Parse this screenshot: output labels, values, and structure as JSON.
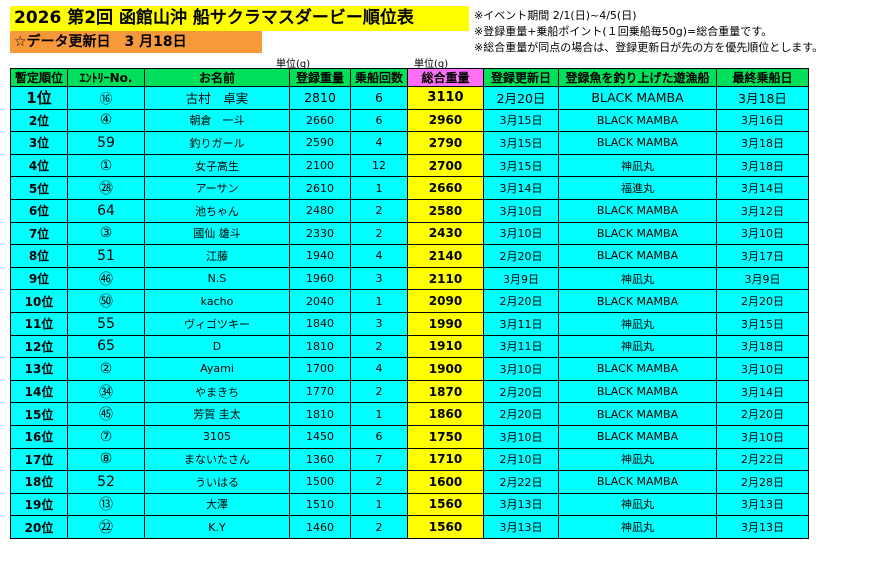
{
  "title": "2026 第2回 函館山沖 船サクラマスダービー順位表",
  "update_label": "☆データ更新日　3 月18日",
  "notes": [
    "※イベント期間 2/1(日)~4/5(日)",
    "※登録重量+乗船ポイント(１回乗船毎50g)=総合重量です。",
    "※総合重量が同点の場合は、登録更新日が先の方を優先順位とします。"
  ],
  "units": {
    "weight_unit": "単位(g)",
    "total_unit": "単位(g)"
  },
  "colors": {
    "title_bg": "#ffff00",
    "subtitle_bg": "#f7983a",
    "header_bg": "#00e05a",
    "total_header_bg": "#ff6ff5",
    "row_bg": "#00ffff",
    "total_bg": "#ffff00"
  },
  "headers": [
    "暫定順位",
    "ｴﾝﾄﾘｰNo.",
    "お名前",
    "登録重量",
    "乗船回数",
    "総合重量",
    "登録更新日",
    "登録魚を釣り上げた遊漁船",
    "最終乗船日"
  ],
  "rows": [
    [
      "1位",
      "⑯",
      "古村　卓実",
      "2810",
      "6",
      "3110",
      "2月20日",
      "BLACK MAMBA",
      "3月18日"
    ],
    [
      "2位",
      "④",
      "朝倉　一斗",
      "2660",
      "6",
      "2960",
      "3月15日",
      "BLACK MAMBA",
      "3月16日"
    ],
    [
      "3位",
      "59",
      "釣りガール",
      "2590",
      "4",
      "2790",
      "3月15日",
      "BLACK MAMBA",
      "3月18日"
    ],
    [
      "4位",
      "①",
      "女子高生",
      "2100",
      "12",
      "2700",
      "3月15日",
      "神凪丸",
      "3月18日"
    ],
    [
      "5位",
      "㉘",
      "アーサン",
      "2610",
      "1",
      "2660",
      "3月14日",
      "福進丸",
      "3月14日"
    ],
    [
      "6位",
      "64",
      "池ちゃん",
      "2480",
      "2",
      "2580",
      "3月10日",
      "BLACK MAMBA",
      "3月12日"
    ],
    [
      "7位",
      "③",
      "國仙 雄斗",
      "2330",
      "2",
      "2430",
      "3月10日",
      "BLACK MAMBA",
      "3月10日"
    ],
    [
      "8位",
      "51",
      "江藤",
      "1940",
      "4",
      "2140",
      "2月20日",
      "BLACK MAMBA",
      "3月17日"
    ],
    [
      "9位",
      "㊻",
      "N.S",
      "1960",
      "3",
      "2110",
      "3月9日",
      "神凪丸",
      "3月9日"
    ],
    [
      "10位",
      "㊿",
      "kacho",
      "2040",
      "1",
      "2090",
      "2月20日",
      "BLACK MAMBA",
      "2月20日"
    ],
    [
      "11位",
      "55",
      "ヴィゴツキー",
      "1840",
      "3",
      "1990",
      "3月11日",
      "神凪丸",
      "3月15日"
    ],
    [
      "12位",
      "65",
      "D",
      "1810",
      "2",
      "1910",
      "3月11日",
      "神凪丸",
      "3月18日"
    ],
    [
      "13位",
      "②",
      "Ayami",
      "1700",
      "4",
      "1900",
      "3月10日",
      "BLACK MAMBA",
      "3月10日"
    ],
    [
      "14位",
      "㉞",
      "やまきち",
      "1770",
      "2",
      "1870",
      "2月20日",
      "BLACK MAMBA",
      "3月14日"
    ],
    [
      "15位",
      "㊺",
      "芳賀 圭太",
      "1810",
      "1",
      "1860",
      "2月20日",
      "BLACK MAMBA",
      "2月20日"
    ],
    [
      "16位",
      "⑦",
      "3105",
      "1450",
      "6",
      "1750",
      "3月10日",
      "BLACK MAMBA",
      "3月10日"
    ],
    [
      "17位",
      "⑧",
      "まないたさん",
      "1360",
      "7",
      "1710",
      "2月10日",
      "神凪丸",
      "2月22日"
    ],
    [
      "18位",
      "52",
      "ういはる",
      "1500",
      "2",
      "1600",
      "2月22日",
      "BLACK MAMBA",
      "2月28日"
    ],
    [
      "19位",
      "⑬",
      "大澤",
      "1510",
      "1",
      "1560",
      "3月13日",
      "神凪丸",
      "3月13日"
    ],
    [
      "20位",
      "㉒",
      "K.Y",
      "1460",
      "2",
      "1560",
      "3月13日",
      "神凪丸",
      "3月13日"
    ]
  ]
}
